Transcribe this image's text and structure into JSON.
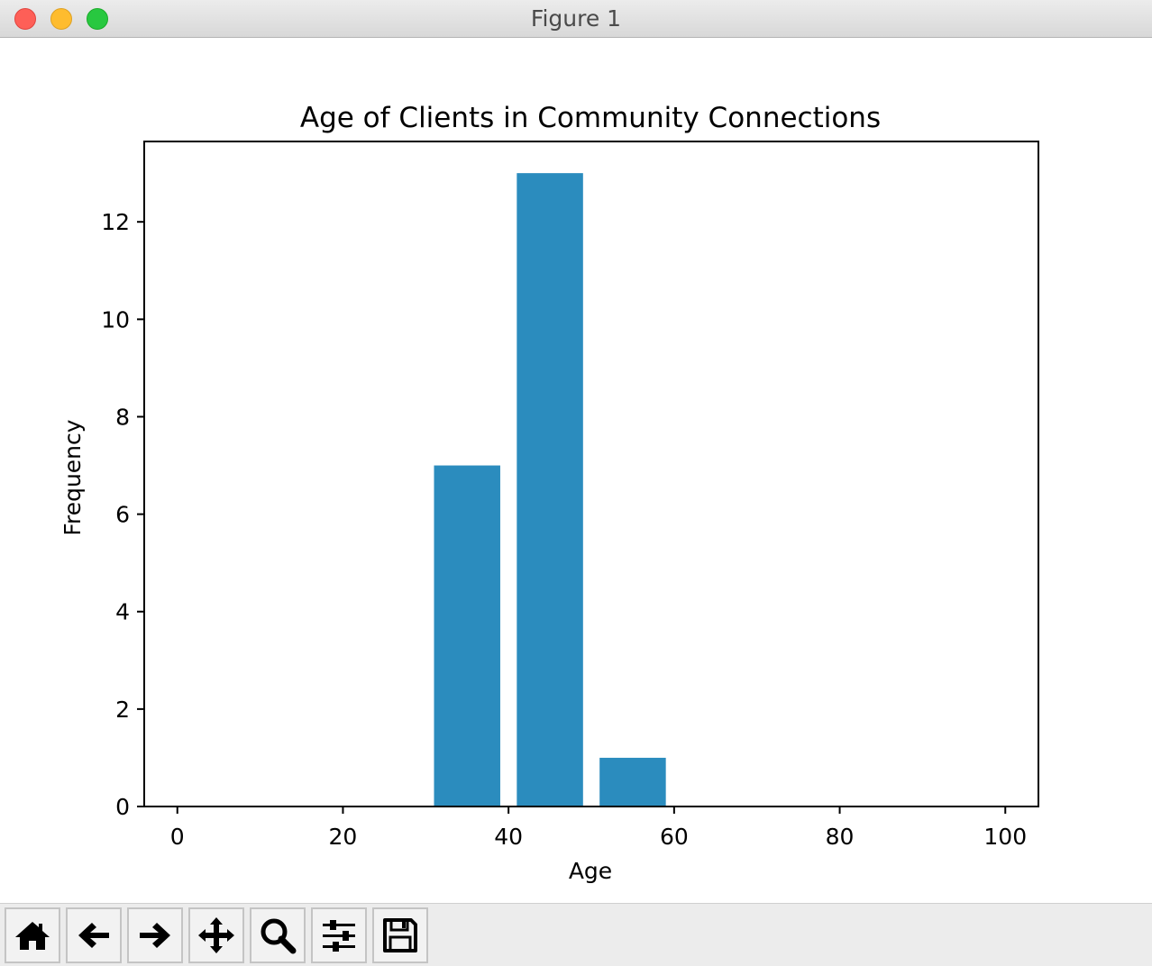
{
  "window": {
    "title": "Figure 1"
  },
  "colors": {
    "bar": "#2b8cbe",
    "axes": "#000000",
    "background": "#ffffff"
  },
  "toolbar": {
    "buttons": [
      {
        "name": "home",
        "icon": "home-icon"
      },
      {
        "name": "back",
        "icon": "arrow-left-icon"
      },
      {
        "name": "forward",
        "icon": "arrow-right-icon"
      },
      {
        "name": "pan",
        "icon": "move-icon"
      },
      {
        "name": "zoom",
        "icon": "magnifier-icon"
      },
      {
        "name": "configure-subplots",
        "icon": "sliders-icon"
      },
      {
        "name": "save",
        "icon": "floppy-disk-icon"
      }
    ]
  },
  "chart_data": {
    "type": "bar",
    "title": "Age of Clients in Community Connections",
    "xlabel": "Age",
    "ylabel": "Frequency",
    "bars": [
      {
        "x": 35,
        "width": 8,
        "value": 7
      },
      {
        "x": 45,
        "width": 8,
        "value": 13
      },
      {
        "x": 55,
        "width": 8,
        "value": 1
      }
    ],
    "xlim": [
      -4,
      104
    ],
    "ylim": [
      0,
      13.65
    ],
    "xticks": [
      0,
      20,
      40,
      60,
      80,
      100
    ],
    "yticks": [
      0,
      2,
      4,
      6,
      8,
      10,
      12
    ],
    "grid": false,
    "legend": null
  }
}
